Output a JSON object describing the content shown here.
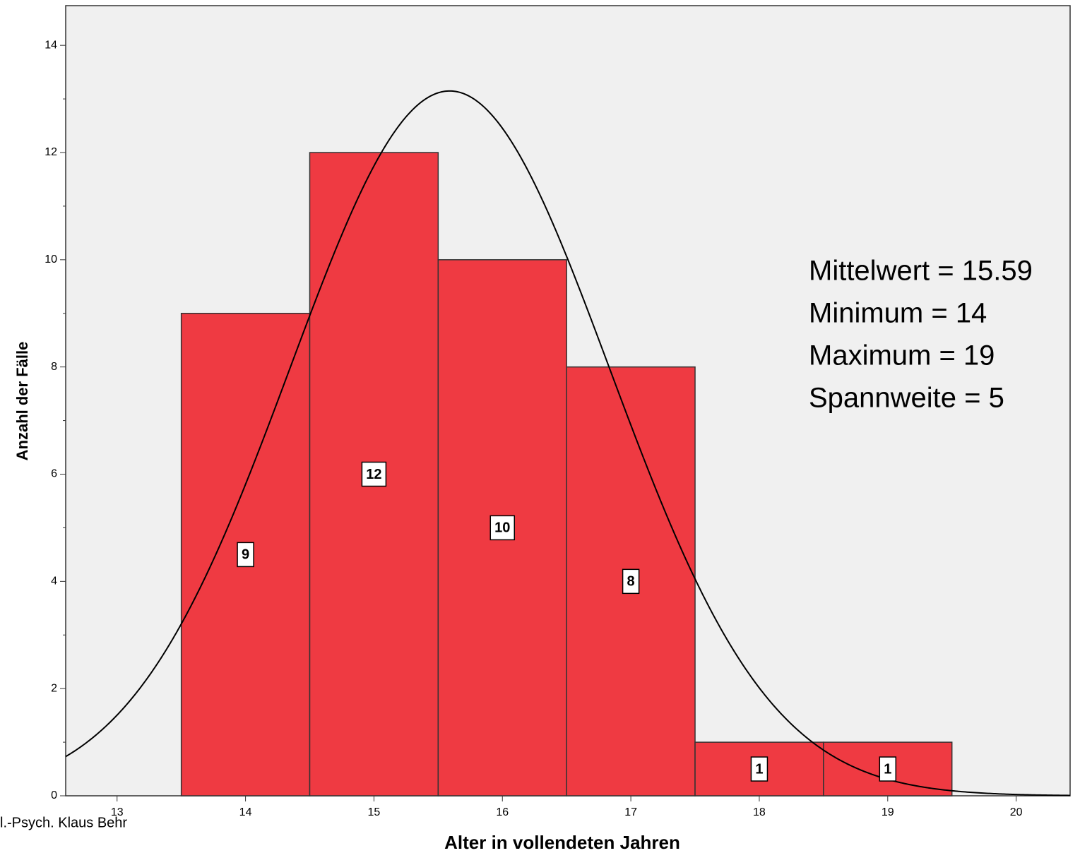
{
  "chart_data": {
    "type": "histogram",
    "x_label": "Alter in vollendeten Jahren",
    "y_label": "Anzahl der Fälle",
    "bins": [
      13.5,
      14.5,
      15.5,
      16.5,
      17.5,
      18.5,
      19.5
    ],
    "values": [
      9,
      12,
      10,
      8,
      1,
      1
    ],
    "color": "#ef3a42",
    "xlim": [
      12.6,
      20.42
    ],
    "xticks": [
      13,
      14,
      15,
      16,
      17,
      18,
      19,
      20
    ],
    "ylim": [
      0,
      14.74
    ],
    "yticks": [
      0,
      2,
      4,
      6,
      8,
      10,
      12,
      14
    ],
    "yminorticks": [
      1,
      3,
      5,
      7,
      9,
      11,
      13
    ],
    "normal_curve": {
      "mean": 15.59,
      "sd": 1.244,
      "n": 41
    },
    "annotations": [
      "Mittelwert = 15.59",
      "Minimum = 14",
      "Maximum = 19",
      "Spannweite = 5"
    ],
    "footer": "l.-Psych. Klaus Behr"
  }
}
